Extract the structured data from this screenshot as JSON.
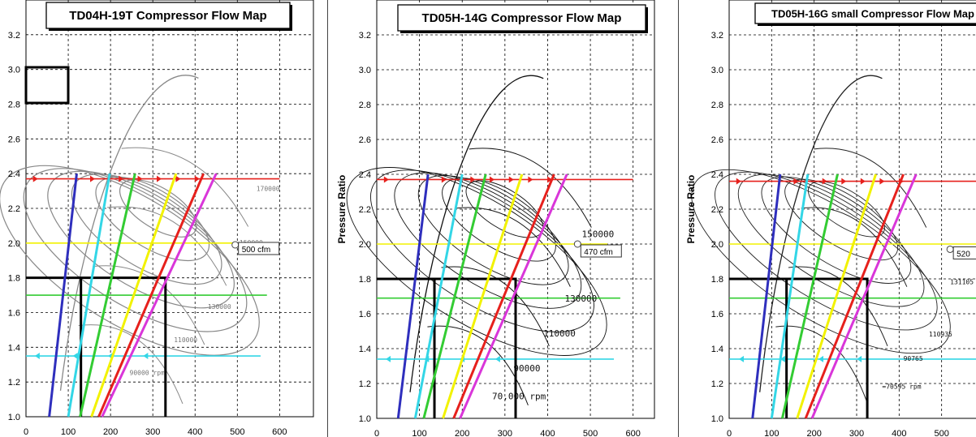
{
  "chart_data": [
    {
      "type": "line",
      "title": "TD04H-19T Compressor Flow Map",
      "xlabel": "",
      "ylabel": "",
      "xlim": [
        0,
        680
      ],
      "ylim": [
        1.0,
        3.4
      ],
      "x_ticks": [
        "0",
        "100",
        "200",
        "300",
        "400",
        "500",
        "600"
      ],
      "x_tick_values": [
        0,
        100,
        200,
        300,
        400,
        500,
        600
      ],
      "y_ticks": [
        "1.0",
        "1.2",
        "1.4",
        "1.6",
        "1.8",
        "2.0",
        "2.2",
        "2.4",
        "2.6",
        "2.8",
        "3.0",
        "3.2"
      ],
      "y_tick_values": [
        1.0,
        1.2,
        1.4,
        1.6,
        1.8,
        2.0,
        2.2,
        2.4,
        2.6,
        2.8,
        3.0,
        3.2
      ],
      "grid": true,
      "map_labels": [
        {
          "text": "170000",
          "x": 545,
          "y": 2.3
        },
        {
          "text": "150000",
          "x": 505,
          "y": 1.99
        },
        {
          "text": "130000",
          "x": 430,
          "y": 1.62
        },
        {
          "text": "110000",
          "x": 350,
          "y": 1.43
        },
        {
          "text": "90000 rpm",
          "x": 245,
          "y": 1.24
        }
      ],
      "callout": {
        "text": "500 cfm",
        "x": 495,
        "y": 1.99
      },
      "series": [
        {
          "color": "#2f2fbd",
          "points": [
            [
              55,
              1.0
            ],
            [
              120,
              2.4
            ]
          ]
        },
        {
          "color": "#33d6e6",
          "points": [
            [
              100,
              1.0
            ],
            [
              198,
              2.4
            ]
          ]
        },
        {
          "color": "#33cc33",
          "points": [
            [
              128,
              1.0
            ],
            [
              258,
              2.4
            ]
          ]
        },
        {
          "color": "#f2f200",
          "points": [
            [
              155,
              1.0
            ],
            [
              355,
              2.4
            ]
          ]
        },
        {
          "color": "#e6201c",
          "points": [
            [
              172,
              1.0
            ],
            [
              420,
              2.4
            ]
          ]
        },
        {
          "color": "#d936d9",
          "points": [
            [
              180,
              1.0
            ],
            [
              450,
              2.4
            ]
          ]
        }
      ],
      "hlines": [
        {
          "color": "#e6201c",
          "y": 2.37,
          "x_from": 0,
          "x_to": 600
        },
        {
          "color": "#f2f200",
          "y": 2.0,
          "x_from": 0,
          "x_to": 500
        },
        {
          "color": "#33cc33",
          "y": 1.7,
          "x_from": 0,
          "x_to": 570
        },
        {
          "color": "#33d6e6",
          "y": 1.35,
          "x_from": 0,
          "x_to": 555
        }
      ],
      "rects": [
        {
          "x0": 130,
          "x1": 330,
          "y0": 1.0,
          "y1": 1.8
        }
      ]
    },
    {
      "type": "line",
      "title": "TD05H-14G Compressor Flow Map",
      "xlabel": "",
      "ylabel": "Pressure Ratio",
      "xlim": [
        0,
        650
      ],
      "ylim": [
        1.0,
        3.4
      ],
      "x_ticks": [
        "0",
        "100",
        "200",
        "300",
        "400",
        "500",
        "600"
      ],
      "x_tick_values": [
        0,
        100,
        200,
        300,
        400,
        500,
        600
      ],
      "y_ticks": [
        "1.0",
        "1.2",
        "1.4",
        "1.6",
        "1.8",
        "2.0",
        "2.2",
        "2.4",
        "2.6",
        "2.8",
        "3.0",
        "3.2"
      ],
      "y_tick_values": [
        1.0,
        1.2,
        1.4,
        1.6,
        1.8,
        2.0,
        2.2,
        2.4,
        2.6,
        2.8,
        3.0,
        3.2
      ],
      "grid": true,
      "map_labels": [
        {
          "text": "150000",
          "x": 480,
          "y": 2.04
        },
        {
          "text": "130000",
          "x": 440,
          "y": 1.67
        },
        {
          "text": "110000",
          "x": 390,
          "y": 1.47
        },
        {
          "text": "90000",
          "x": 320,
          "y": 1.27
        },
        {
          "text": "70,000 rpm",
          "x": 270,
          "y": 1.11
        }
      ],
      "callout": {
        "text": "470 cfm",
        "x": 470,
        "y": 2.0
      },
      "series": [
        {
          "color": "#2f2fbd",
          "points": [
            [
              50,
              1.0
            ],
            [
              120,
              2.4
            ]
          ]
        },
        {
          "color": "#33d6e6",
          "points": [
            [
              90,
              1.0
            ],
            [
              200,
              2.4
            ]
          ]
        },
        {
          "color": "#33cc33",
          "points": [
            [
              110,
              1.0
            ],
            [
              255,
              2.4
            ]
          ]
        },
        {
          "color": "#f2f200",
          "points": [
            [
              155,
              1.0
            ],
            [
              340,
              2.4
            ]
          ]
        },
        {
          "color": "#e6201c",
          "points": [
            [
              180,
              1.0
            ],
            [
              415,
              2.4
            ]
          ]
        },
        {
          "color": "#d936d9",
          "points": [
            [
              195,
              1.0
            ],
            [
              445,
              2.4
            ]
          ]
        }
      ],
      "hlines": [
        {
          "color": "#e6201c",
          "y": 2.37,
          "x_from": 0,
          "x_to": 600
        },
        {
          "color": "#f2f200",
          "y": 2.0,
          "x_from": 0,
          "x_to": 540
        },
        {
          "color": "#33cc33",
          "y": 1.69,
          "x_from": 0,
          "x_to": 570
        },
        {
          "color": "#33d6e6",
          "y": 1.34,
          "x_from": 0,
          "x_to": 555
        }
      ],
      "rects": [
        {
          "x0": 135,
          "x1": 325,
          "y0": 1.0,
          "y1": 1.8
        }
      ]
    },
    {
      "type": "line",
      "title": "TD05H-16G small Compressor Flow Map",
      "xlabel": "",
      "ylabel": "Pressure Ratio",
      "xlim": [
        0,
        600
      ],
      "ylim": [
        1.0,
        3.4
      ],
      "x_ticks": [
        "0",
        "100",
        "200",
        "300",
        "400",
        "500"
      ],
      "x_tick_values": [
        0,
        100,
        200,
        300,
        400,
        500
      ],
      "y_ticks": [
        "1.0",
        "1.2",
        "1.4",
        "1.6",
        "1.8",
        "2.0",
        "2.2",
        "2.4",
        "2.6",
        "2.8",
        "3.0",
        "3.2"
      ],
      "y_tick_values": [
        1.0,
        1.2,
        1.4,
        1.6,
        1.8,
        2.0,
        2.2,
        2.4,
        2.6,
        2.8,
        3.0,
        3.2
      ],
      "grid": true,
      "map_labels": [
        {
          "text": "131105",
          "x": 520,
          "y": 1.77
        },
        {
          "text": "110935",
          "x": 470,
          "y": 1.47
        },
        {
          "text": "90765",
          "x": 410,
          "y": 1.33
        },
        {
          "text": "=70595 rpm",
          "x": 360,
          "y": 1.17
        }
      ],
      "callout": {
        "text": "520",
        "x": 520,
        "y": 1.97
      },
      "series": [
        {
          "color": "#2f2fbd",
          "points": [
            [
              55,
              1.0
            ],
            [
              120,
              2.4
            ]
          ]
        },
        {
          "color": "#33d6e6",
          "points": [
            [
              100,
              1.0
            ],
            [
              185,
              2.4
            ]
          ]
        },
        {
          "color": "#33cc33",
          "points": [
            [
              125,
              1.0
            ],
            [
              255,
              2.4
            ]
          ]
        },
        {
          "color": "#f2f200",
          "points": [
            [
              160,
              1.0
            ],
            [
              345,
              2.4
            ]
          ]
        },
        {
          "color": "#e6201c",
          "points": [
            [
              180,
              1.0
            ],
            [
              410,
              2.4
            ]
          ]
        },
        {
          "color": "#d936d9",
          "points": [
            [
              195,
              1.0
            ],
            [
              440,
              2.4
            ]
          ]
        }
      ],
      "hlines": [
        {
          "color": "#e6201c",
          "y": 2.36,
          "x_from": 0,
          "x_to": 600
        },
        {
          "color": "#f2f200",
          "y": 2.0,
          "x_from": 0,
          "x_to": 600
        },
        {
          "color": "#33cc33",
          "y": 1.69,
          "x_from": 0,
          "x_to": 600
        },
        {
          "color": "#33d6e6",
          "y": 1.34,
          "x_from": 0,
          "x_to": 600
        }
      ],
      "rects": [
        {
          "x0": 135,
          "x1": 325,
          "y0": 1.0,
          "y1": 1.8
        }
      ]
    }
  ]
}
